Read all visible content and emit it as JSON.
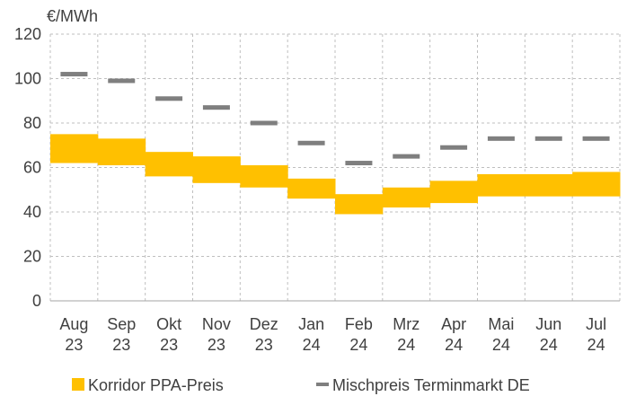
{
  "chart_data": {
    "type": "bar",
    "y_unit": "€/MWh",
    "ylim": [
      0,
      120
    ],
    "y_ticks": [
      0,
      20,
      40,
      60,
      80,
      100,
      120
    ],
    "grid": true,
    "legend_position": "bottom",
    "categories": [
      [
        "Aug",
        "23"
      ],
      [
        "Sep",
        "23"
      ],
      [
        "Okt",
        "23"
      ],
      [
        "Nov",
        "23"
      ],
      [
        "Dez",
        "23"
      ],
      [
        "Jan",
        "24"
      ],
      [
        "Feb",
        "24"
      ],
      [
        "Mrz",
        "24"
      ],
      [
        "Apr",
        "24"
      ],
      [
        "Mai",
        "24"
      ],
      [
        "Jun",
        "24"
      ],
      [
        "Jul",
        "24"
      ]
    ],
    "series": [
      {
        "name": "Korridor PPA-Preis",
        "type": "range",
        "color": "#FFC000",
        "low": [
          62,
          61,
          56,
          53,
          51,
          46,
          39,
          42,
          44,
          47,
          47,
          47
        ],
        "high": [
          75,
          73,
          67,
          65,
          61,
          55,
          48,
          51,
          54,
          57,
          57,
          58
        ]
      },
      {
        "name": "Mischpreis Terminmarkt DE",
        "type": "marker",
        "color": "#7F7F7F",
        "values": [
          102,
          99,
          91,
          87,
          80,
          71,
          62,
          65,
          69,
          73,
          73,
          73
        ]
      }
    ]
  }
}
